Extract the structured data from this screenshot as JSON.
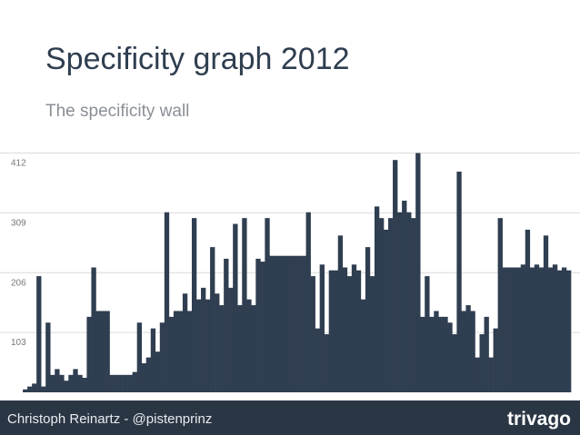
{
  "chart_data": {
    "type": "bar",
    "title": "Specificity graph 2012",
    "subtitle": "The specificity wall",
    "values": [
      0,
      0,
      0,
      5,
      10,
      15,
      200,
      10,
      120,
      30,
      40,
      30,
      20,
      30,
      40,
      30,
      25,
      130,
      215,
      140,
      140,
      140,
      30,
      30,
      30,
      30,
      30,
      35,
      120,
      50,
      60,
      110,
      70,
      120,
      310,
      130,
      140,
      140,
      170,
      140,
      300,
      160,
      180,
      160,
      250,
      170,
      150,
      230,
      180,
      290,
      150,
      300,
      160,
      150,
      230,
      225,
      300,
      235,
      235,
      235,
      235,
      235,
      235,
      235,
      235,
      310,
      200,
      110,
      220,
      100,
      210,
      210,
      270,
      215,
      200,
      220,
      210,
      160,
      250,
      200,
      320,
      300,
      280,
      300,
      400,
      310,
      330,
      310,
      300,
      412,
      130,
      200,
      130,
      140,
      130,
      130,
      120,
      100,
      380,
      140,
      150,
      140,
      60,
      100,
      130,
      60,
      110,
      300,
      215,
      215,
      215,
      215,
      220,
      280,
      215,
      220,
      215,
      270,
      215,
      220,
      210,
      215,
      210
    ],
    "color": "#2f3e50",
    "ylim": [
      0,
      430
    ],
    "yticks": [
      103,
      206,
      309,
      412
    ],
    "grid": true
  },
  "footer": {
    "author": "Christoph Reinartz - @pistenprinz",
    "logo": "trivago"
  }
}
